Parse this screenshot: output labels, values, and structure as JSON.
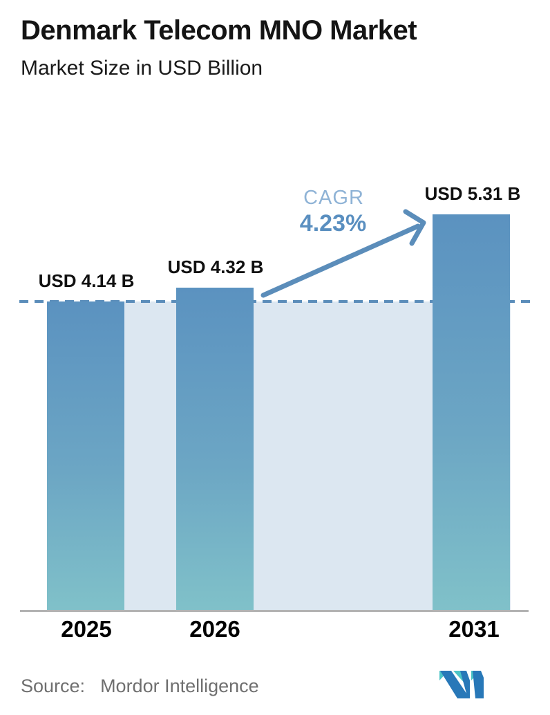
{
  "header": {
    "title": "Denmark Telecom MNO Market",
    "subtitle": "Market Size in USD Billion"
  },
  "chart_data": {
    "type": "bar",
    "title": "Denmark Telecom MNO Market",
    "subtitle": "Market Size in USD Billion",
    "unit": "USD Billion",
    "categories": [
      "2025",
      "2026",
      "2031"
    ],
    "values": [
      4.14,
      4.32,
      5.31
    ],
    "value_labels": [
      "USD 4.14 B",
      "USD 4.32 B",
      "USD 5.31 B"
    ],
    "annotation": {
      "label": "CAGR",
      "value": "4.23%"
    },
    "reference_line_value": 4.14,
    "ylim": [
      0,
      5.31
    ],
    "grid": false,
    "legend": false,
    "xlabel": "",
    "ylabel": "",
    "colors": {
      "bar_gradient_top": "#5b92c0",
      "bar_gradient_bottom": "#80c1c9",
      "band": "#dce7f1",
      "dashed_line": "#5b8dba",
      "arrow": "#5b8dba",
      "cagr_label": "#8fb3d6",
      "cagr_value": "#5a8fc0",
      "baseline": "#b3b3b3",
      "label_text": "#101010"
    }
  },
  "footer": {
    "source_label": "Source:",
    "source_name": "Mordor Intelligence",
    "logo_colors": {
      "blue": "#2878b8",
      "teal": "#4cc4c6"
    }
  }
}
